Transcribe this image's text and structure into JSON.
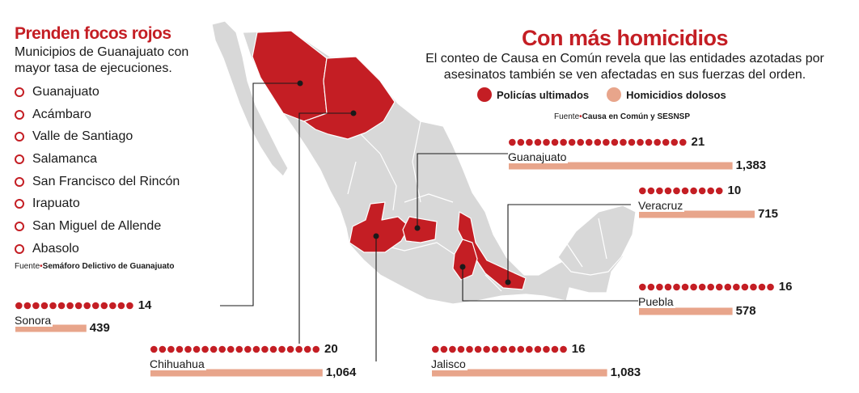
{
  "left": {
    "title": "Prenden focos rojos",
    "subtitle_line1": "Municipios de Guanajuato con",
    "subtitle_line2": "mayor tasa de ejecuciones.",
    "municipios": [
      "Guanajuato",
      "Acámbaro",
      "Valle de Santiago",
      "Salamanca",
      "San Francisco del Rincón",
      "Irapuato",
      "San Miguel de Allende",
      "Abasolo"
    ],
    "source_label": "Fuente",
    "source_text": "Semáforo Delictivo de Guanajuato"
  },
  "right": {
    "title": "Con más homicidios",
    "subtitle_line1": "El conteo de Causa en Común revela que las entidades azotadas por",
    "subtitle_line2": "asesinatos también se ven afectadas en sus fuerzas del orden.",
    "source_label": "Fuente",
    "source_text": "Causa en Común y SESNSP"
  },
  "colors": {
    "accent": "#c41e24",
    "bar": "#e8a58b",
    "land": "#d8d8d8",
    "highlight": "#c41e24"
  },
  "chart_data": {
    "type": "bar",
    "categories": [
      "Sonora",
      "Chihuahua",
      "Jalisco",
      "Guanajuato",
      "Veracruz",
      "Puebla"
    ],
    "series": [
      {
        "name": "Policías ultimados",
        "values": [
          14,
          20,
          16,
          21,
          10,
          16
        ]
      },
      {
        "name": "Homicidios dolosos",
        "values": [
          439,
          1064,
          1083,
          1383,
          715,
          578
        ]
      }
    ],
    "value_labels": {
      "Policías ultimados": [
        "14",
        "20",
        "16",
        "21",
        "10",
        "16"
      ],
      "Homicidios dolosos": [
        "439",
        "1,064",
        "1,083",
        "1,383",
        "715",
        "578"
      ]
    },
    "legend_position": "top"
  }
}
